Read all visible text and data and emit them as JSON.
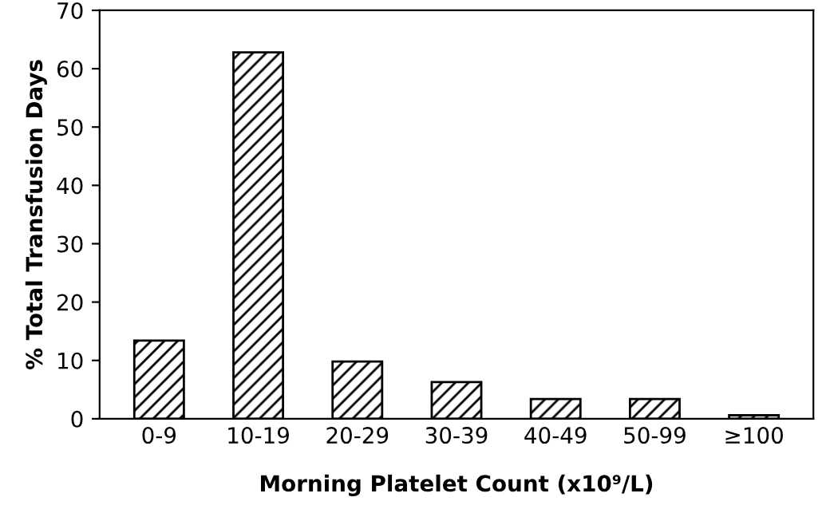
{
  "chart_data": {
    "type": "bar",
    "xlabel": "Morning Platelet Count (x10⁹/L)",
    "ylabel": "% Total Transfusion Days",
    "categories": [
      "0-9",
      "10-19",
      "20-29",
      "30-39",
      "40-49",
      "50-99",
      "≥100"
    ],
    "values": [
      13.4,
      62.8,
      9.8,
      6.3,
      3.4,
      3.4,
      0.6
    ],
    "color": "#000000",
    "ylim": [
      0,
      70
    ],
    "yticks": [
      0,
      10,
      20,
      30,
      40,
      50,
      60,
      70
    ],
    "grid": false
  }
}
